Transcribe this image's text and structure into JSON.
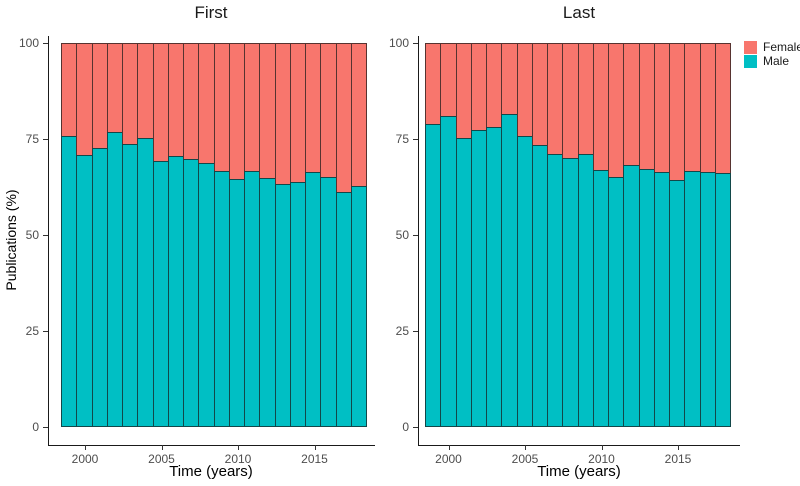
{
  "titles": {
    "first_panel": "First",
    "last_panel": "Last"
  },
  "axes": {
    "y_label": "Publications (%)",
    "x_label": "Time (years)",
    "y_ticks": [
      "100",
      "75",
      "50",
      "25",
      "0"
    ],
    "x_ticks": [
      "2000",
      "2005",
      "2010",
      "2015"
    ]
  },
  "legend": {
    "items": [
      {
        "label": "Female",
        "color": "#F8766D"
      },
      {
        "label": "Male",
        "color": "#00BFC4"
      }
    ]
  },
  "colors": {
    "female": "#F8766D",
    "male": "#00BFC4",
    "bar_outline": "rgba(25,25,25,0.72)",
    "axis": "#1a1a1a",
    "tick_text": "#4d4d4d"
  },
  "chart_data": [
    {
      "type": "bar",
      "stacked": true,
      "units": "percent",
      "title": "First",
      "xlabel": "Time (years)",
      "ylabel": "Publications (%)",
      "ylim": [
        0,
        100
      ],
      "grid": false,
      "legend_position": "right-of-last-panel",
      "stack_order": "Male bottom, Female top",
      "x": [
        1999,
        2000,
        2001,
        2002,
        2003,
        2004,
        2005,
        2006,
        2007,
        2008,
        2009,
        2010,
        2011,
        2012,
        2013,
        2014,
        2015,
        2016,
        2017,
        2018
      ],
      "series": [
        {
          "name": "Male",
          "color": "#00BFC4",
          "values": [
            75.5,
            70.5,
            72.5,
            76.5,
            73.5,
            75.0,
            69.0,
            70.4,
            69.5,
            68.4,
            66.3,
            64.3,
            66.5,
            64.6,
            63.0,
            63.5,
            66.2,
            64.8,
            61.0,
            62.4
          ]
        },
        {
          "name": "Female",
          "color": "#F8766D",
          "values": [
            24.5,
            29.5,
            27.5,
            23.5,
            26.5,
            25.0,
            31.0,
            29.6,
            30.5,
            31.6,
            33.7,
            35.7,
            33.5,
            35.4,
            37.0,
            36.5,
            33.8,
            35.2,
            39.0,
            37.6
          ]
        }
      ]
    },
    {
      "type": "bar",
      "stacked": true,
      "units": "percent",
      "title": "Last",
      "xlabel": "Time (years)",
      "ylabel": "Publications (%)",
      "ylim": [
        0,
        100
      ],
      "grid": false,
      "legend_position": "right",
      "stack_order": "Male bottom, Female top",
      "x": [
        1999,
        2000,
        2001,
        2002,
        2003,
        2004,
        2005,
        2006,
        2007,
        2008,
        2009,
        2010,
        2011,
        2012,
        2013,
        2014,
        2015,
        2016,
        2017,
        2018
      ],
      "series": [
        {
          "name": "Male",
          "color": "#00BFC4",
          "values": [
            78.7,
            80.7,
            75.0,
            77.2,
            77.8,
            81.3,
            75.6,
            73.2,
            70.9,
            69.7,
            70.9,
            66.7,
            64.8,
            68.0,
            67.0,
            66.1,
            64.1,
            66.5,
            66.1,
            65.8
          ]
        },
        {
          "name": "Female",
          "color": "#F8766D",
          "values": [
            21.3,
            19.3,
            25.0,
            22.8,
            22.2,
            18.7,
            24.4,
            26.8,
            29.1,
            30.3,
            29.1,
            33.3,
            35.2,
            32.0,
            33.0,
            33.9,
            35.9,
            33.5,
            33.9,
            34.2
          ]
        }
      ]
    }
  ]
}
